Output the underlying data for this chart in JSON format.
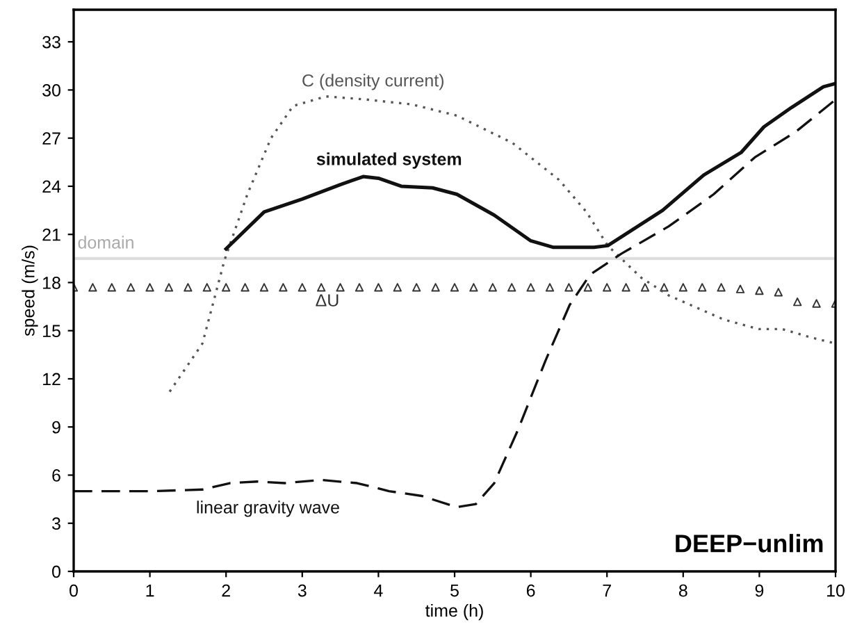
{
  "chart_data": {
    "type": "line",
    "xlabel": "time (h)",
    "ylabel": "speed (m/s)",
    "xlim": [
      0,
      10
    ],
    "ylim": [
      0,
      35
    ],
    "xticks": [
      0,
      1,
      2,
      3,
      4,
      5,
      6,
      7,
      8,
      9,
      10
    ],
    "yticks": [
      0,
      3,
      6,
      9,
      12,
      15,
      18,
      21,
      24,
      27,
      30,
      33
    ],
    "grid": false,
    "legend": false,
    "series": [
      {
        "name": "C (density current)",
        "color": "#555555",
        "line_style": "dotted",
        "x": [
          1.26,
          1.69,
          1.98,
          2.28,
          2.59,
          2.88,
          3.31,
          3.85,
          4.44,
          5.03,
          5.76,
          6.37,
          6.73,
          7.01,
          7.45,
          7.81,
          8.53,
          8.99,
          9.3,
          9.66,
          10.0
        ],
        "values": [
          11.2,
          14.2,
          19.4,
          23.5,
          27.0,
          29.0,
          29.6,
          29.4,
          29.1,
          28.4,
          26.7,
          24.4,
          22.4,
          20.3,
          18.3,
          17.2,
          15.7,
          15.1,
          15.1,
          14.6,
          14.2
        ]
      },
      {
        "name": "simulated system",
        "color": "#111111",
        "line_style": "solid",
        "x": [
          2.0,
          2.5,
          3.0,
          3.5,
          3.8,
          4.0,
          4.3,
          4.71,
          5.03,
          5.52,
          6.0,
          6.29,
          6.83,
          7.01,
          7.73,
          8.27,
          8.76,
          9.06,
          9.42,
          9.84,
          10.0
        ],
        "values": [
          20.1,
          22.4,
          23.2,
          24.1,
          24.6,
          24.5,
          24.0,
          23.9,
          23.5,
          22.2,
          20.6,
          20.2,
          20.2,
          20.3,
          22.5,
          24.7,
          26.1,
          27.7,
          28.9,
          30.2,
          30.4
        ]
      },
      {
        "name": "ΔU",
        "color": "#333333",
        "type": "scatter",
        "marker": "triangle",
        "x": [
          0,
          0.25,
          0.5,
          0.75,
          1,
          1.25,
          1.5,
          1.75,
          2,
          2.25,
          2.5,
          2.75,
          3,
          3.25,
          3.5,
          3.75,
          4,
          4.25,
          4.5,
          4.75,
          5,
          5.25,
          5.5,
          5.75,
          6,
          6.25,
          6.5,
          6.75,
          7,
          7.25,
          7.5,
          7.75,
          8,
          8.25,
          8.5,
          8.75,
          9,
          9.25,
          9.5,
          9.75,
          10
        ],
        "values": [
          17.7,
          17.7,
          17.7,
          17.7,
          17.7,
          17.7,
          17.7,
          17.7,
          17.7,
          17.7,
          17.7,
          17.7,
          17.7,
          17.7,
          17.7,
          17.7,
          17.7,
          17.7,
          17.7,
          17.7,
          17.7,
          17.7,
          17.7,
          17.7,
          17.7,
          17.7,
          17.7,
          17.7,
          17.7,
          17.7,
          17.7,
          17.7,
          17.7,
          17.7,
          17.7,
          17.6,
          17.5,
          17.4,
          16.8,
          16.7,
          16.7
        ]
      },
      {
        "name": "linear gravity wave",
        "color": "#111111",
        "line_style": "dashed",
        "x": [
          0,
          1.02,
          1.69,
          2.05,
          2.41,
          2.77,
          3.24,
          3.72,
          4.14,
          4.57,
          5.03,
          5.28,
          5.52,
          5.83,
          6.19,
          6.51,
          6.78,
          7.19,
          7.81,
          8.4,
          8.94,
          9.48,
          10.0
        ],
        "values": [
          5.0,
          5.0,
          5.1,
          5.5,
          5.6,
          5.5,
          5.7,
          5.5,
          5.0,
          4.7,
          4.0,
          4.2,
          5.5,
          8.8,
          13.1,
          16.6,
          18.5,
          19.8,
          21.5,
          23.5,
          25.8,
          27.4,
          29.4
        ]
      }
    ],
    "ref_lines": [
      {
        "axis": "y",
        "value": 19.5,
        "label": "domain",
        "color": "#dddddd"
      }
    ],
    "annotations": [
      "DEEP−unlim"
    ]
  }
}
